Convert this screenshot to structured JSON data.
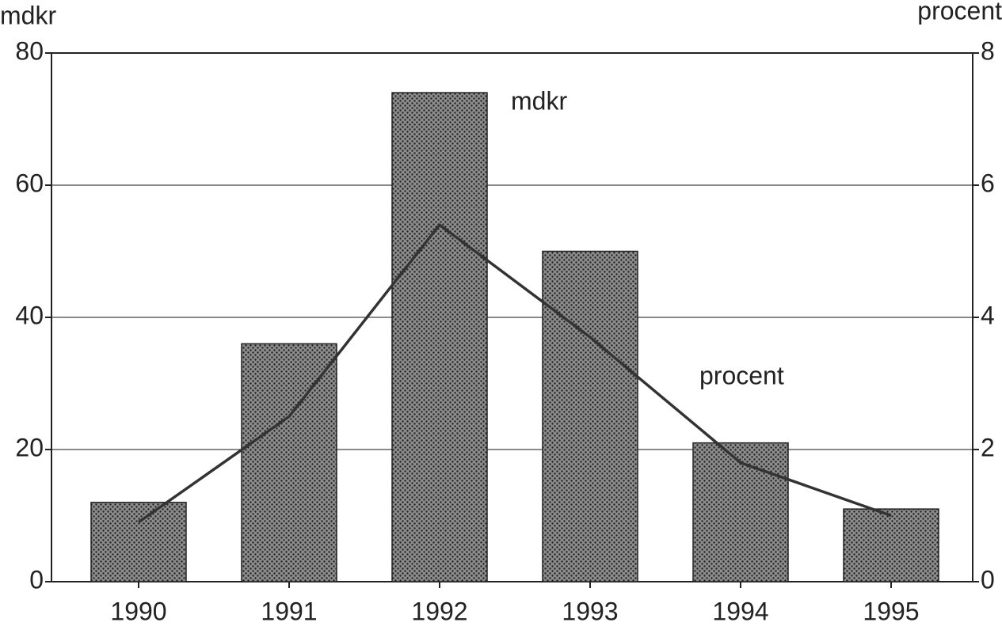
{
  "chart_data": {
    "type": "bar",
    "ylabel": "mdkr",
    "y2label": "procent",
    "categories": [
      "1990",
      "1991",
      "1992",
      "1993",
      "1994",
      "1995"
    ],
    "series": [
      {
        "name": "mdkr",
        "type": "bar",
        "color": "#8c8c8c",
        "values": [
          12,
          36,
          74,
          50,
          21,
          11
        ]
      },
      {
        "name": "procent",
        "type": "line",
        "axis": "y2",
        "color": "#333333",
        "values": [
          0.9,
          2.5,
          5.4,
          3.7,
          1.8,
          1.0
        ]
      }
    ],
    "ylim": [
      0,
      80
    ],
    "yticks": [
      0,
      20,
      40,
      60,
      80
    ],
    "y2lim": [
      0,
      8
    ],
    "y2ticks": [
      0,
      2,
      4,
      6,
      8
    ],
    "grid": true
  }
}
